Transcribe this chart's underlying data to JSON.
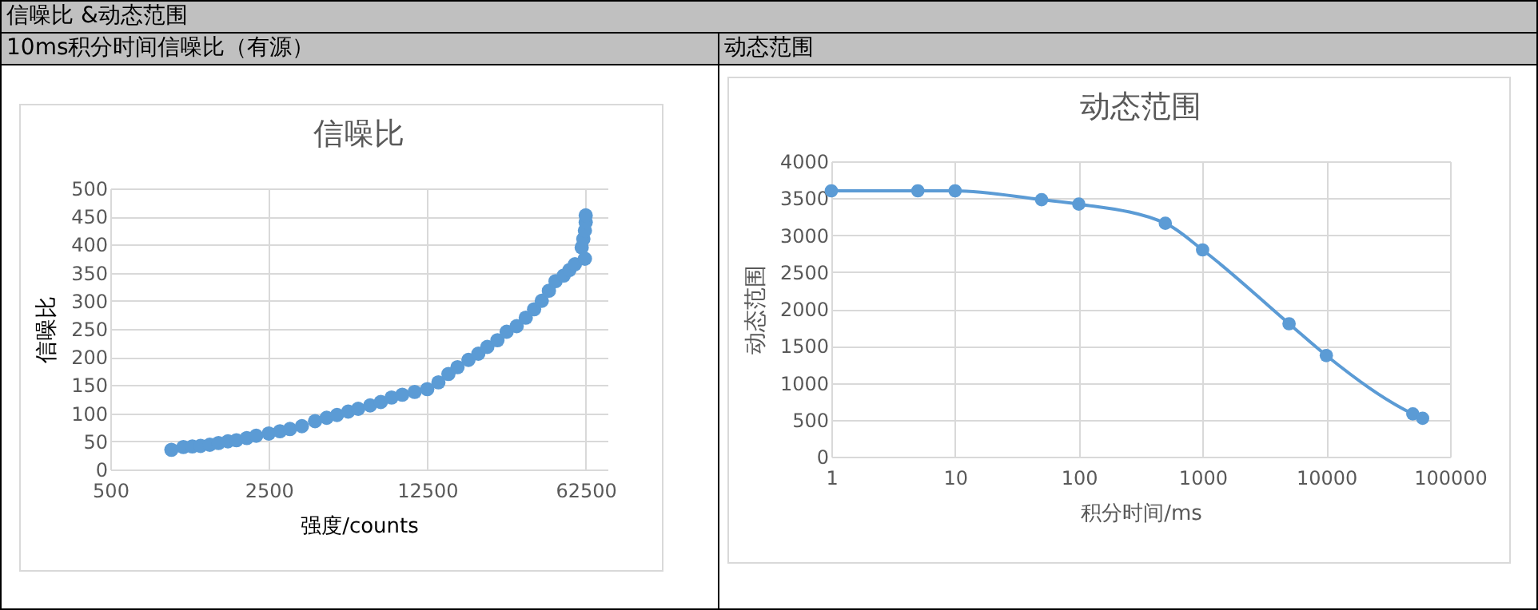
{
  "chart_data": [
    {
      "type": "scatter",
      "title": "信噪比",
      "xlabel": "强度/counts",
      "ylabel": "信噪比",
      "annotations": [
        "信噪比 &动态范围",
        "10ms积分时间信噪比（有源）"
      ],
      "log": "x",
      "xlim": [
        500,
        78000
      ],
      "xticks": [
        500,
        2500,
        12500,
        62500
      ],
      "ylim": [
        0,
        500
      ],
      "yticks": [
        0,
        50,
        100,
        150,
        200,
        250,
        300,
        350,
        400,
        450,
        500
      ],
      "grid": true,
      "marker": "circle",
      "x": [
        930,
        1050,
        1150,
        1250,
        1373,
        1500,
        1650,
        1800,
        2000,
        2200,
        2500,
        2800,
        3100,
        3500,
        4000,
        4500,
        5000,
        5600,
        6200,
        7000,
        7800,
        8700,
        9700,
        11000,
        12500,
        14000,
        15500,
        17000,
        19000,
        21000,
        23000,
        25500,
        28000,
        31000,
        34000,
        37000,
        40000,
        43000,
        46000,
        50000,
        53000,
        56000,
        60000,
        61000,
        62000,
        62500,
        62500,
        62000
      ],
      "series": [
        {
          "color": "#5b9bd5",
          "values": [
            35,
            40,
            41,
            42,
            44,
            47,
            50,
            52,
            56,
            60,
            64,
            68,
            72,
            77,
            86,
            92,
            97,
            103,
            108,
            114,
            120,
            128,
            133,
            138,
            143,
            155,
            170,
            182,
            195,
            206,
            218,
            230,
            245,
            255,
            270,
            285,
            300,
            318,
            335,
            345,
            355,
            365,
            395,
            410,
            425,
            440,
            452,
            375
          ]
        }
      ]
    },
    {
      "type": "line",
      "title": "动态范围",
      "xlabel": "积分时间/ms",
      "ylabel": "动态范围",
      "annotations": [
        "动态范围"
      ],
      "log": "x",
      "xlim": [
        1,
        100000
      ],
      "xticks": [
        1,
        10,
        100,
        1000,
        10000,
        100000
      ],
      "ylim": [
        0,
        4000
      ],
      "yticks": [
        0,
        500,
        1000,
        1500,
        2000,
        2500,
        3000,
        3500,
        4000
      ],
      "grid": true,
      "marker": "circle",
      "x": [
        1,
        5,
        10,
        50,
        100,
        500,
        1000,
        5000,
        10000,
        50000,
        60000
      ],
      "series": [
        {
          "color": "#5b9bd5",
          "values": [
            3600,
            3600,
            3600,
            3480,
            3420,
            3160,
            2800,
            1800,
            1370,
            580,
            520
          ]
        }
      ]
    }
  ]
}
